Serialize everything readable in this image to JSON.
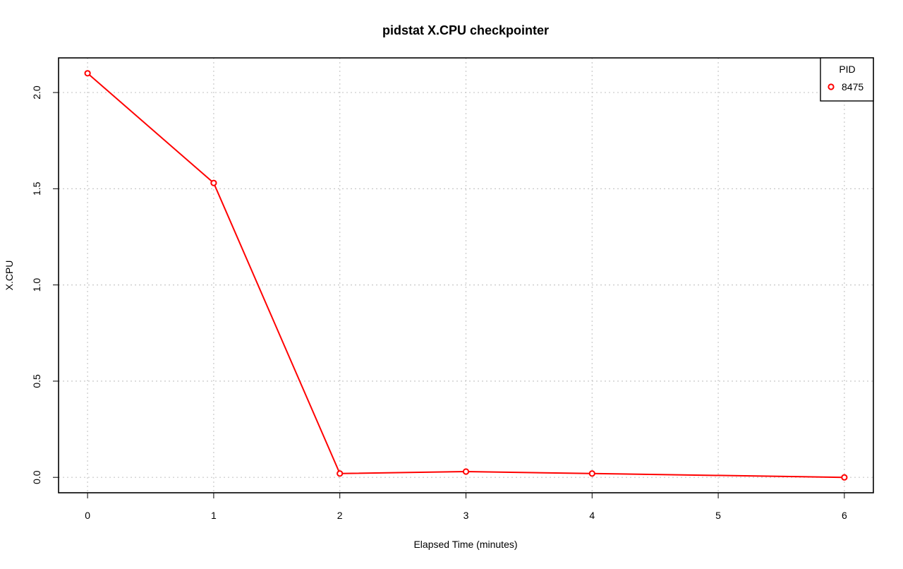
{
  "chart_data": {
    "type": "line",
    "title": "pidstat X.CPU checkpointer",
    "xlabel": "Elapsed Time (minutes)",
    "ylabel": "X.CPU",
    "xlim": [
      -0.23,
      6.23
    ],
    "ylim": [
      -0.08,
      2.18
    ],
    "xticks": [
      0,
      1,
      2,
      3,
      4,
      5,
      6
    ],
    "yticks": [
      0.0,
      0.5,
      1.0,
      1.5,
      2.0
    ],
    "xtick_labels": [
      "0",
      "1",
      "2",
      "3",
      "4",
      "5",
      "6"
    ],
    "ytick_labels": [
      "0.0",
      "0.5",
      "1.0",
      "1.5",
      "2.0"
    ],
    "grid": true,
    "legend": {
      "title": "PID",
      "placement": "top-right",
      "entries": [
        "8475"
      ]
    },
    "series": [
      {
        "name": "8475",
        "color": "#ff0000",
        "marker": "open-circle",
        "x": [
          0,
          1,
          2,
          3,
          4,
          6
        ],
        "y": [
          2.1,
          1.53,
          0.02,
          0.03,
          0.02,
          0.0
        ]
      }
    ]
  }
}
